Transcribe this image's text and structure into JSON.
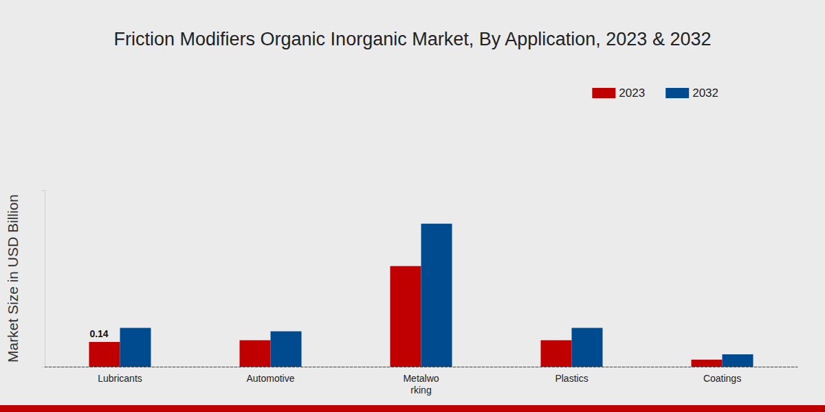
{
  "chart_data": {
    "type": "bar",
    "title": "Friction Modifiers Organic Inorganic Market, By Application, 2023 & 2032",
    "y_label": "Market Size in USD Billion",
    "categories": [
      "Lubricants",
      "Automotive",
      "Metalwo\nrking",
      "Plastics",
      "Coatings"
    ],
    "series": [
      {
        "name": "2023",
        "color": "#c00000",
        "values": [
          0.14,
          0.15,
          0.57,
          0.15,
          0.04
        ],
        "value_labels": [
          "0.14",
          null,
          null,
          null,
          null
        ]
      },
      {
        "name": "2032",
        "color": "#004a8f",
        "values": [
          0.22,
          0.2,
          0.81,
          0.22,
          0.07
        ]
      }
    ],
    "ylim": [
      0,
      1
    ],
    "yticks": [
      0,
      1
    ],
    "legend": "top-right",
    "grid": false,
    "tick_labels": "x"
  }
}
